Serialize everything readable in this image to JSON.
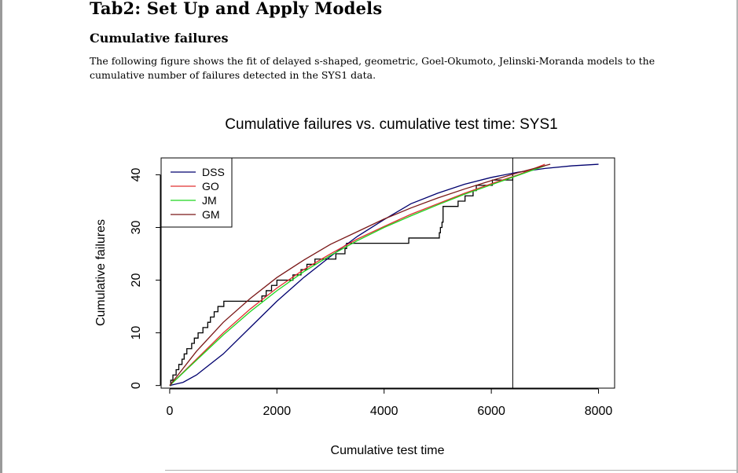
{
  "document": {
    "section_title": "Tab2: Set Up and Apply Models",
    "subsection_title": "Cumulative failures",
    "paragraph": "The following figure shows the fit of delayed s-shaped, geometric, Goel-Okumoto, Jelinski-Moranda models to the cumulative number of failures detected in the SYS1 data."
  },
  "chart_data": {
    "type": "line",
    "title": "Cumulative failures vs. cumulative test time: SYS1",
    "xlabel": "Cumulative test time",
    "ylabel": "Cumulative failures",
    "xlim": [
      -160,
      8300
    ],
    "ylim": [
      -0.5,
      43.2
    ],
    "x_ticks": [
      0,
      2000,
      4000,
      6000,
      8000
    ],
    "y_ticks": [
      0,
      10,
      20,
      30,
      40
    ],
    "grid": false,
    "legend_position": "top-left",
    "vline_x": 6400,
    "observed": {
      "color": "#000000",
      "points": [
        [
          0,
          0
        ],
        [
          20,
          1
        ],
        [
          60,
          2
        ],
        [
          120,
          3
        ],
        [
          170,
          4
        ],
        [
          230,
          5
        ],
        [
          270,
          6
        ],
        [
          320,
          7
        ],
        [
          410,
          8
        ],
        [
          460,
          9
        ],
        [
          530,
          10
        ],
        [
          620,
          11
        ],
        [
          710,
          12
        ],
        [
          760,
          13
        ],
        [
          830,
          14
        ],
        [
          900,
          15
        ],
        [
          1010,
          16
        ],
        [
          1720,
          17
        ],
        [
          1800,
          18
        ],
        [
          1900,
          19
        ],
        [
          2000,
          20
        ],
        [
          2300,
          21
        ],
        [
          2450,
          22
        ],
        [
          2560,
          23
        ],
        [
          2710,
          24
        ],
        [
          3100,
          25
        ],
        [
          3270,
          26
        ],
        [
          3300,
          27
        ],
        [
          4460,
          28
        ],
        [
          5030,
          29
        ],
        [
          5050,
          30
        ],
        [
          5080,
          31
        ],
        [
          5100,
          34
        ],
        [
          5380,
          35
        ],
        [
          5510,
          36
        ],
        [
          5660,
          37
        ],
        [
          5720,
          38
        ],
        [
          6020,
          39
        ],
        [
          6400,
          40
        ]
      ]
    },
    "series": [
      {
        "name": "DSS",
        "color": "#00006e",
        "x": [
          0,
          250,
          500,
          1000,
          1500,
          2000,
          2500,
          3000,
          3500,
          4000,
          4500,
          5000,
          5500,
          6000,
          6500,
          7000,
          7500,
          8000
        ],
        "values": [
          0,
          0.6,
          2,
          6,
          11,
          16,
          20.5,
          24.5,
          28.3,
          31.5,
          34.5,
          36.5,
          38.2,
          39.5,
          40.5,
          41.2,
          41.7,
          42
        ]
      },
      {
        "name": "GO",
        "color": "#e03030",
        "x": [
          0,
          500,
          1000,
          1500,
          2000,
          2500,
          3000,
          3500,
          4000,
          4500,
          5000,
          5500,
          6000,
          6500,
          7000
        ],
        "values": [
          0,
          5,
          10,
          14.5,
          18.5,
          22,
          25,
          27.8,
          30.2,
          32.5,
          34.5,
          36.5,
          38.3,
          40,
          42
        ]
      },
      {
        "name": "JM",
        "color": "#1ed51e",
        "x": [
          0,
          500,
          1000,
          1500,
          2000,
          2500,
          3000,
          3500,
          4000,
          4500,
          5000,
          5500,
          6000,
          6500,
          7000
        ],
        "values": [
          0,
          4.8,
          9.6,
          14,
          18,
          21.6,
          24.7,
          27.5,
          30,
          32.2,
          34.3,
          36.3,
          38.1,
          39.9,
          41.7
        ]
      },
      {
        "name": "GM",
        "color": "#7a1717",
        "x": [
          0,
          500,
          1000,
          1500,
          2000,
          2500,
          3000,
          3500,
          4000,
          4500,
          5000,
          5500,
          6000,
          6500,
          7100
        ],
        "values": [
          0,
          6.5,
          12,
          16.5,
          20.5,
          23.8,
          26.8,
          29.2,
          31.6,
          33.7,
          35.6,
          37.3,
          38.9,
          40.4,
          42
        ]
      }
    ]
  }
}
